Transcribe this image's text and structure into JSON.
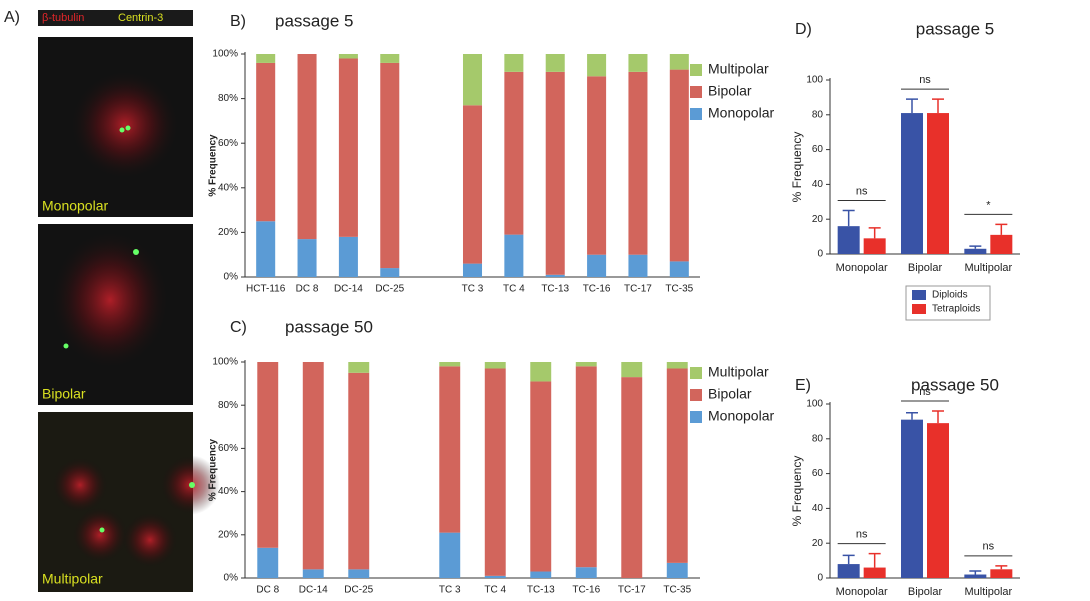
{
  "figure_a": {
    "panel_label": "A)",
    "stain_1": "β-tubulin",
    "stain_2": "Centrin-3",
    "images": [
      "Monopolar",
      "Bipolar",
      "Multipolar"
    ]
  },
  "chart_data": [
    {
      "type": "stacked_bar",
      "panel_label": "B)",
      "title": "passage 5",
      "y_label": "% Frequency",
      "categories": [
        "HCT-116",
        "DC 8",
        "DC-14",
        "DC-25",
        null,
        "TC 3",
        "TC 4",
        "TC-13",
        "TC-16",
        "TC-17",
        "TC-35"
      ],
      "series": [
        {
          "name": "Monopolar",
          "color": "#5b9bd5",
          "values": [
            25,
            17,
            18,
            4,
            null,
            6,
            19,
            1,
            10,
            10,
            7
          ]
        },
        {
          "name": "Bipolar",
          "color": "#d2655c",
          "values": [
            71,
            83,
            80,
            92,
            null,
            71,
            73,
            91,
            80,
            82,
            86
          ]
        },
        {
          "name": "Multipolar",
          "color": "#a5c96b",
          "values": [
            4,
            0,
            2,
            4,
            null,
            23,
            8,
            8,
            10,
            8,
            7
          ]
        }
      ],
      "ylim": [
        0,
        100
      ],
      "yticks": [
        {
          "value": 0,
          "label": "0%"
        },
        {
          "value": 20,
          "label": "20%"
        },
        {
          "value": 40,
          "label": "40%"
        },
        {
          "value": 60,
          "label": "60%"
        },
        {
          "value": 80,
          "label": "80%"
        },
        {
          "value": 100,
          "label": "100%"
        }
      ]
    },
    {
      "type": "stacked_bar",
      "panel_label": "C)",
      "title": "passage 50",
      "y_label": "% Frequency",
      "categories": [
        "DC 8",
        "DC-14",
        "DC-25",
        null,
        "TC 3",
        "TC 4",
        "TC-13",
        "TC-16",
        "TC-17",
        "TC-35"
      ],
      "series": [
        {
          "name": "Monopolar",
          "color": "#5b9bd5",
          "values": [
            14,
            4,
            4,
            null,
            21,
            1,
            3,
            5,
            0,
            7
          ]
        },
        {
          "name": "Bipolar",
          "color": "#d2655c",
          "values": [
            86,
            96,
            91,
            null,
            77,
            96,
            88,
            93,
            93,
            90
          ]
        },
        {
          "name": "Multipolar",
          "color": "#a5c96b",
          "values": [
            0,
            0,
            5,
            null,
            2,
            3,
            9,
            2,
            7,
            3
          ]
        }
      ],
      "ylim": [
        0,
        100
      ],
      "yticks": [
        {
          "value": 0,
          "label": "0%"
        },
        {
          "value": 20,
          "label": "20%"
        },
        {
          "value": 40,
          "label": "40%"
        },
        {
          "value": 60,
          "label": "60%"
        },
        {
          "value": 80,
          "label": "80%"
        },
        {
          "value": 100,
          "label": "100%"
        }
      ]
    },
    {
      "type": "bar",
      "panel_label": "D)",
      "title": "passage 5",
      "y_label": "% Frequency",
      "categories": [
        "Monopolar",
        "Bipolar",
        "Multipolar"
      ],
      "series": [
        {
          "name": "Diploids",
          "color": "#3953a6",
          "values": [
            16,
            81,
            3
          ],
          "errors": [
            9,
            8,
            1.5
          ]
        },
        {
          "name": "Tetraploids",
          "color": "#e8302a",
          "values": [
            9,
            81,
            11
          ],
          "errors": [
            6,
            8,
            6
          ]
        }
      ],
      "annotations": [
        "ns",
        "ns",
        "*"
      ],
      "legend": true,
      "ylim": [
        0,
        100
      ],
      "yticks": [
        0,
        20,
        40,
        60,
        80,
        100
      ]
    },
    {
      "type": "bar",
      "panel_label": "E)",
      "title": "passage 50",
      "y_label": "% Frequency",
      "categories": [
        "Monopolar",
        "Bipolar",
        "Multipolar"
      ],
      "series": [
        {
          "name": "Diploids",
          "color": "#3953a6",
          "values": [
            8,
            91,
            2
          ],
          "errors": [
            5,
            4,
            2
          ]
        },
        {
          "name": "Tetraploids",
          "color": "#e8302a",
          "values": [
            6,
            89,
            5
          ],
          "errors": [
            8,
            7,
            2
          ]
        }
      ],
      "annotations": [
        "ns",
        "ns",
        "ns"
      ],
      "legend": false,
      "ylim": [
        0,
        100
      ],
      "yticks": [
        0,
        20,
        40,
        60,
        80,
        100
      ]
    }
  ]
}
